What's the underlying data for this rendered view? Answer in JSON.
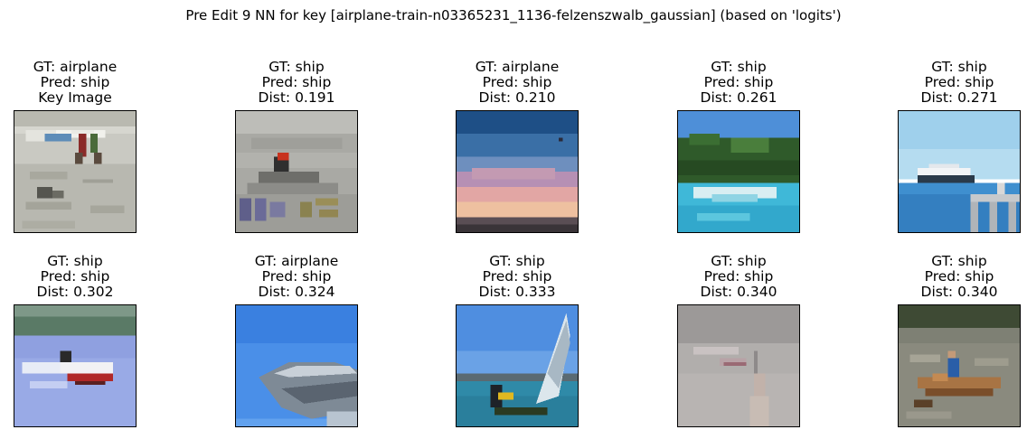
{
  "figure": {
    "title": "Pre Edit 9 NN for key [airplane-train-n03365231_1136-felzenszwalb_gaussian] (based on 'logits')"
  },
  "cells": [
    {
      "gt": "GT: airplane",
      "pred": "Pred: ship",
      "extra": "Key Image",
      "scene": "key-airplane-image"
    },
    {
      "gt": "GT: ship",
      "pred": "Pred: ship",
      "extra": "Dist: 0.191",
      "scene": "jetski-image"
    },
    {
      "gt": "GT: airplane",
      "pred": "Pred: ship",
      "extra": "Dist: 0.210",
      "scene": "sunset-sky-image"
    },
    {
      "gt": "GT: ship",
      "pred": "Pred: ship",
      "extra": "Dist: 0.261",
      "scene": "island-boat-image"
    },
    {
      "gt": "GT: ship",
      "pred": "Pred: ship",
      "extra": "Dist: 0.271",
      "scene": "yacht-image"
    },
    {
      "gt": "GT: ship",
      "pred": "Pred: ship",
      "extra": "Dist: 0.302",
      "scene": "speedboat-image"
    },
    {
      "gt": "GT: airplane",
      "pred": "Pred: ship",
      "extra": "Dist: 0.324",
      "scene": "airplane-nose-image"
    },
    {
      "gt": "GT: ship",
      "pred": "Pred: ship",
      "extra": "Dist: 0.333",
      "scene": "sailboard-image"
    },
    {
      "gt": "GT: ship",
      "pred": "Pred: ship",
      "extra": "Dist: 0.340",
      "scene": "foggy-boat-image"
    },
    {
      "gt": "GT: ship",
      "pred": "Pred: ship",
      "extra": "Dist: 0.340",
      "scene": "rowboat-image"
    }
  ],
  "palette": {
    "frame": "#000000",
    "water_blue": "#3fb8d8",
    "sky_blue": "#9fd0ec",
    "sunset_pink": "#d89aa8",
    "hull_red": "#b02828"
  }
}
